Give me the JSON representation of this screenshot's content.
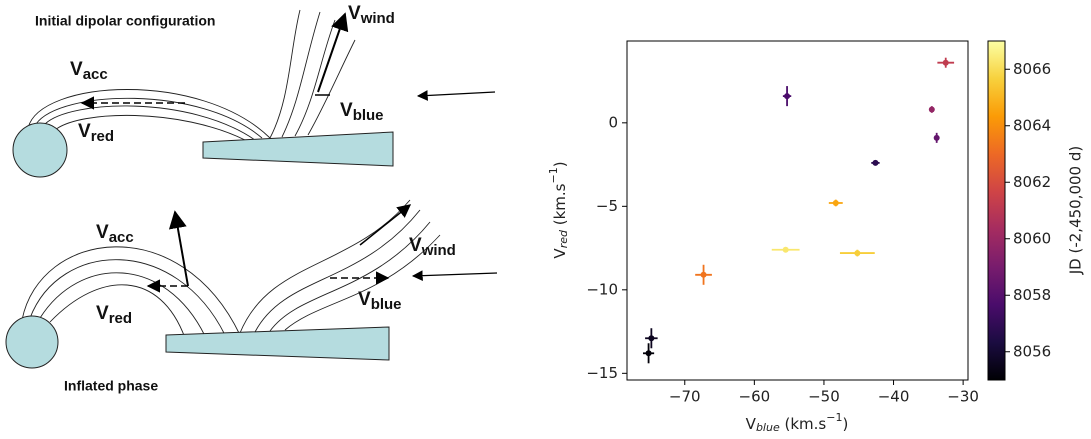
{
  "diagram": {
    "panels": [
      {
        "title": "Initial dipolar configuration",
        "labels": [
          {
            "main": "V",
            "sub": "acc"
          },
          {
            "main": "V",
            "sub": "red"
          },
          {
            "main": "V",
            "sub": "wind"
          },
          {
            "main": "V",
            "sub": "blue"
          }
        ]
      },
      {
        "title": "Inflated phase",
        "labels": [
          {
            "main": "V",
            "sub": "acc"
          },
          {
            "main": "V",
            "sub": "red"
          },
          {
            "main": "V",
            "sub": "wind"
          },
          {
            "main": "V",
            "sub": "blue"
          }
        ]
      }
    ]
  },
  "chart_data": {
    "type": "scatter",
    "xlabel": {
      "main": "V",
      "sub": "blue",
      "mid": " (km.s",
      "sup": "−1",
      "end": ")"
    },
    "ylabel": {
      "main": "V",
      "sub": "red",
      "mid": " (km.s",
      "sup": "−1",
      "end": ")"
    },
    "x": [
      -75.2,
      -74.8,
      -67.3,
      -55.3,
      -55.5,
      -45.2,
      -48.3,
      -42.6,
      -34.5,
      -33.8,
      -32.5
    ],
    "values": [
      -13.8,
      -12.9,
      -9.1,
      1.6,
      -7.6,
      -7.8,
      -4.8,
      -2.4,
      0.8,
      -0.9,
      3.6
    ],
    "xerr": [
      0.8,
      0.9,
      1.2,
      0.6,
      2.0,
      2.5,
      1.0,
      0.6,
      0.3,
      0.2,
      1.2
    ],
    "yerr": [
      0.6,
      0.6,
      0.6,
      0.6,
      0.1,
      0.2,
      0.2,
      0.1,
      0.2,
      0.3,
      0.3
    ],
    "c": [
      8055.1,
      8055.6,
      8063.3,
      8057.7,
      8066.3,
      8065.6,
      8064.6,
      8056.8,
      8059.8,
      8058.4,
      8061.2
    ],
    "xlim": [
      -78.3,
      -29.3
    ],
    "ylim": [
      -15.4,
      4.9
    ],
    "xticks": [
      {
        "value": -70,
        "label": "−70"
      },
      {
        "value": -60,
        "label": "−60"
      },
      {
        "value": -50,
        "label": "−50"
      },
      {
        "value": -40,
        "label": "−40"
      },
      {
        "value": -30,
        "label": "−30"
      }
    ],
    "yticks": [
      0,
      {
        "value": -5,
        "label": "−5"
      },
      {
        "value": -10,
        "label": "−10"
      },
      {
        "value": -15,
        "label": "−15"
      }
    ],
    "colorbar": {
      "label": "JD (-2,450,000 d)",
      "clim": [
        8055,
        8067
      ],
      "ticks": [
        8056,
        8058,
        8060,
        8062,
        8064,
        8066
      ]
    },
    "colormap": [
      "#000004",
      "#1b0c41",
      "#4a0c6b",
      "#781c6d",
      "#a52c60",
      "#cf4446",
      "#ed6925",
      "#fb9b06",
      "#f7d13d",
      "#fcffa4"
    ]
  }
}
